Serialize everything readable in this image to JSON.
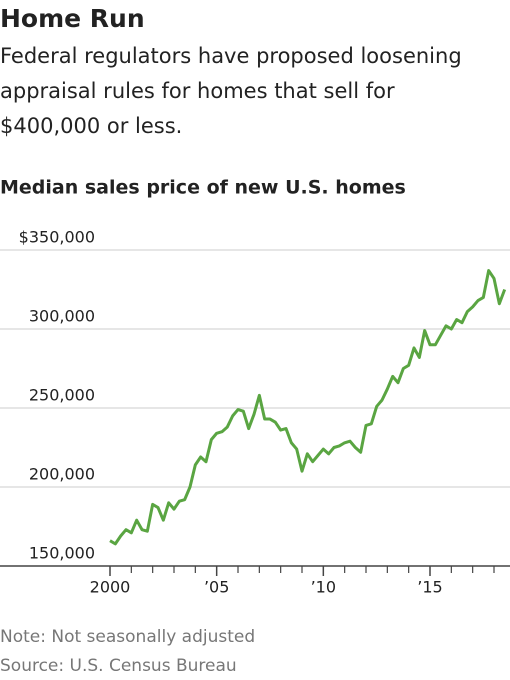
{
  "chart_data": {
    "type": "line",
    "title": "Home Run",
    "subtitle": [
      "Federal regulators have proposed loosening",
      "appraisal rules for homes that sell for",
      "$400,000 or less."
    ],
    "chart_title": "Median sales price of new U.S. homes",
    "notes": [
      "Note: Not seasonally adjusted",
      "Source: U.S. Census Bureau"
    ],
    "x": [
      2000,
      2000.25,
      2000.5,
      2000.75,
      2001,
      2001.25,
      2001.5,
      2001.75,
      2002,
      2002.25,
      2002.5,
      2002.75,
      2003,
      2003.25,
      2003.5,
      2003.75,
      2004,
      2004.25,
      2004.5,
      2004.75,
      2005,
      2005.25,
      2005.5,
      2005.75,
      2006,
      2006.25,
      2006.5,
      2006.75,
      2007,
      2007.25,
      2007.5,
      2007.75,
      2008,
      2008.25,
      2008.5,
      2008.75,
      2009,
      2009.25,
      2009.5,
      2009.75,
      2010,
      2010.25,
      2010.5,
      2010.75,
      2011,
      2011.25,
      2011.5,
      2011.75,
      2012,
      2012.25,
      2012.5,
      2012.75,
      2013,
      2013.25,
      2013.5,
      2013.75,
      2014,
      2014.25,
      2014.5,
      2014.75,
      2015,
      2015.25,
      2015.5,
      2015.75,
      2016,
      2016.25,
      2016.5,
      2016.75,
      2017,
      2017.25,
      2017.5,
      2017.75,
      2018,
      2018.25,
      2018.5
    ],
    "series": [
      {
        "name": "Median sales price",
        "color": "#5aa542",
        "values": [
          166000,
          164000,
          169000,
          173000,
          171000,
          179000,
          173000,
          172000,
          189000,
          187000,
          179000,
          190000,
          186000,
          191000,
          192000,
          200000,
          214000,
          219000,
          216000,
          230000,
          234000,
          235000,
          238000,
          245000,
          249000,
          248000,
          237000,
          246000,
          258000,
          243000,
          243000,
          241000,
          236000,
          237000,
          228000,
          224000,
          210000,
          221000,
          216000,
          220000,
          224000,
          221000,
          225000,
          226000,
          228000,
          229000,
          225000,
          222000,
          239000,
          240000,
          251000,
          255000,
          262000,
          270000,
          266000,
          275000,
          277000,
          288000,
          282000,
          299000,
          290000,
          290000,
          296000,
          302000,
          300000,
          306000,
          304000,
          311000,
          314000,
          318000,
          320000,
          337000,
          332000,
          316000,
          325000
        ]
      }
    ],
    "xlim": [
      2000,
      2018.75
    ],
    "xticks": [
      2000,
      {
        "value": 2005,
        "label": "’05"
      },
      {
        "value": 2010,
        "label": "’10"
      },
      {
        "value": 2015,
        "label": "’15"
      }
    ],
    "xticks_minor": [
      2001,
      2002,
      2003,
      2004,
      2006,
      2007,
      2008,
      2009,
      2011,
      2012,
      2013,
      2014,
      2016,
      2017,
      2018
    ],
    "ylim": [
      150000,
      350000
    ],
    "yticks": [
      {
        "value": 150000,
        "label": "150,000"
      },
      {
        "value": 200000,
        "label": "200,000"
      },
      {
        "value": 250000,
        "label": "250,000"
      },
      {
        "value": 300000,
        "label": "300,000"
      },
      {
        "value": 350000,
        "label": "$350,000"
      }
    ],
    "grid": true
  }
}
